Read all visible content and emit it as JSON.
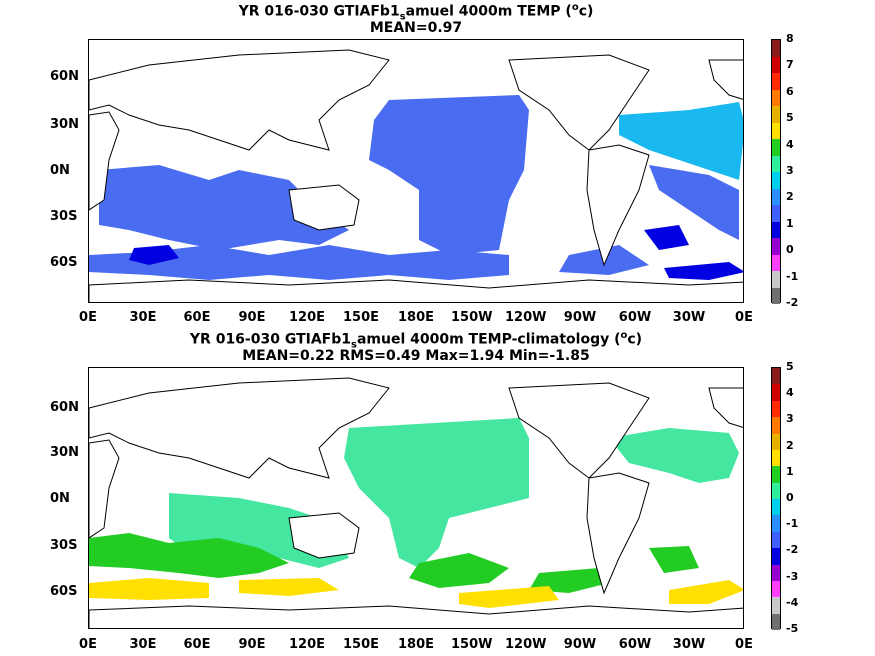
{
  "panels": [
    {
      "title_prefix": "YR 016-030 GTIAFb1",
      "title_sub": "s",
      "title_suffix": "amuel 4000m TEMP (",
      "title_sup": "o",
      "title_end": "c)",
      "stats": "MEAN=0.97",
      "colorbar_labels": [
        "8",
        "7",
        "6",
        "5",
        "4",
        "3",
        "2",
        "1",
        "0",
        "-1",
        "-2"
      ]
    },
    {
      "title_prefix": "YR 016-030 GTIAFb1",
      "title_sub": "s",
      "title_suffix": "amuel 4000m TEMP-climatology (",
      "title_sup": "o",
      "title_end": "c)",
      "stats": "MEAN=0.22   RMS=0.49   Max=1.94   Min=-1.85",
      "colorbar_labels": [
        "5",
        "4",
        "3",
        "2",
        "1",
        "0",
        "-1",
        "-2",
        "-3",
        "-4",
        "-5"
      ]
    }
  ],
  "y_ticks": [
    "60N",
    "30N",
    "0N",
    "30S",
    "60S"
  ],
  "x_ticks": [
    "0E",
    "30E",
    "60E",
    "90E",
    "120E",
    "150E",
    "180E",
    "150W",
    "120W",
    "90W",
    "60W",
    "30W",
    "0E"
  ],
  "colors": {
    "cbar": [
      "#8b1a1a",
      "#d00000",
      "#ff2a00",
      "#ff7a00",
      "#e8b000",
      "#ffe000",
      "#22d022",
      "#30f0a0",
      "#00d0f0",
      "#2a90ff",
      "#4060ff",
      "#0000e0",
      "#9a00d0",
      "#ff40ff",
      "#c8c8c8",
      "#707070"
    ],
    "top_main": "#4a6cf0",
    "top_light": "#1ab8f0",
    "top_deep": "#0000e0",
    "bottom_main": "#44e6a0",
    "bottom_green": "#22cc22",
    "bottom_yellow": "#ffe000"
  }
}
